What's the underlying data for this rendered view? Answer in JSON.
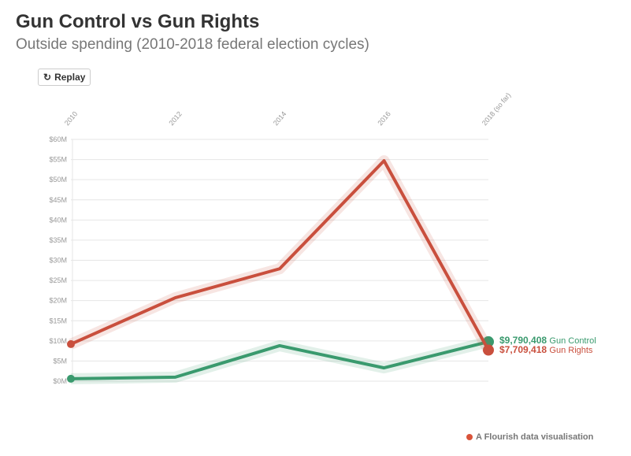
{
  "title": "Gun Control vs Gun Rights",
  "subtitle": "Outside spending (2010-2018 federal election cycles)",
  "replay_label": "Replay",
  "footer": "A Flourish data visualisation",
  "colors": {
    "gun_control": "#3a9a6e",
    "gun_rights": "#c94f3d"
  },
  "chart_data": {
    "type": "line",
    "title": "Gun Control vs Gun Rights",
    "subtitle": "Outside spending (2010-2018 federal election cycles)",
    "categories": [
      "2010",
      "2012",
      "2014",
      "2016",
      "2018 (so far)"
    ],
    "ylim": [
      0,
      60
    ],
    "yticks": [
      "$0M",
      "$5M",
      "$10M",
      "$15M",
      "$20M",
      "$25M",
      "$30M",
      "$35M",
      "$40M",
      "$45M",
      "$50M",
      "$55M",
      "$60M"
    ],
    "grid": true,
    "series": [
      {
        "name": "Gun Control",
        "values": [
          0.6,
          1.0,
          8.8,
          3.3,
          9.790408
        ],
        "end_label": "$9,790,408",
        "color": "#3a9a6e"
      },
      {
        "name": "Gun Rights",
        "values": [
          9.2,
          20.7,
          27.9,
          54.7,
          7.709418
        ],
        "end_label": "$7,709,418",
        "color": "#c94f3d"
      }
    ]
  }
}
